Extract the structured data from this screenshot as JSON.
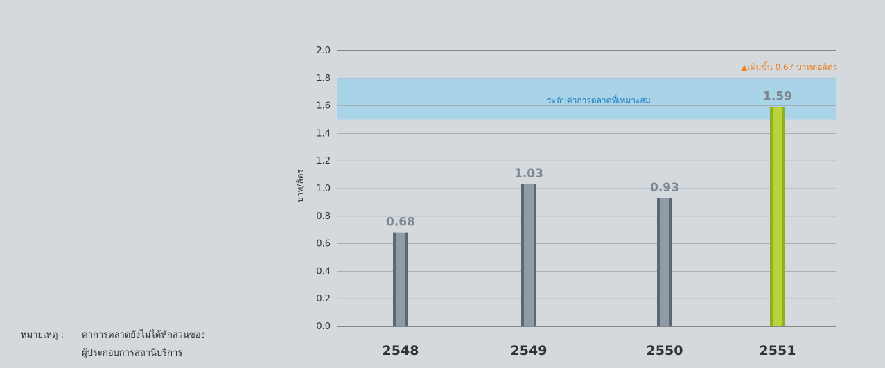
{
  "chart_data": {
    "type": "bar",
    "categories": [
      "2548",
      "2549",
      "2550",
      "2551"
    ],
    "values": [
      0.68,
      1.03,
      0.93,
      1.59
    ],
    "value_labels": [
      "0.68",
      "1.03",
      "0.93",
      "1.59"
    ],
    "ylabel": "บาท/ลิตร",
    "ylim": [
      0,
      2.0
    ],
    "yticks": [
      "0.0",
      "0.2",
      "0.4",
      "0.6",
      "0.8",
      "1.0",
      "1.2",
      "1.4",
      "1.6",
      "1.8",
      "2.0"
    ],
    "grid": true,
    "band": {
      "from": 1.5,
      "to": 1.8,
      "label": "ระดับค่าการตลาดที่เหมาะสม"
    },
    "annotation": "▲เพิ่มขึ้น 0.67 บาทต่อลิตร",
    "colors": {
      "bar": "#8f9ba6",
      "bar_edge": "#5d6770",
      "highlight_bar": "#b8d43a",
      "highlight_edge": "#8fb021",
      "band": "#a9d3e6",
      "annotation": "#ee7e22",
      "band_text": "#1e7fc4"
    },
    "highlight_index": 3
  },
  "note": {
    "label": "หมายเหตุ :",
    "line1": "ค่าการตลาดยังไม่ได้หักส่วนของ",
    "line2": "ผู้ประกอบการสถานีบริการ"
  }
}
